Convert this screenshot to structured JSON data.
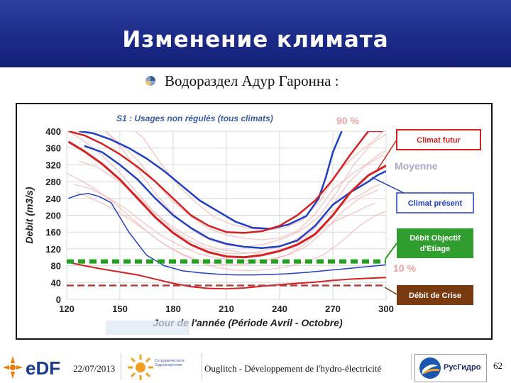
{
  "header": {
    "title": "Изменение климата"
  },
  "subtitle": "Водораздел Адур Гаронна :",
  "chart_data": {
    "type": "line",
    "title": "S1 : Usages non régulés (tous climats)",
    "xlabel": "Jour de l'année (Période Avril - Octobre)",
    "ylabel": "Debit (m3/s)",
    "xlim": [
      120,
      300
    ],
    "ylim": [
      0,
      400
    ],
    "x_ticks": [
      120,
      150,
      180,
      210,
      240,
      270,
      300
    ],
    "y_ticks": [
      0,
      40,
      80,
      120,
      160,
      200,
      240,
      280,
      320,
      360,
      400
    ],
    "x_tick_labels": [
      "120",
      "150",
      "180",
      "210",
      "240",
      "270",
      "300"
    ],
    "y_tick_labels": [
      "0",
      "40",
      "80",
      "120",
      "160",
      "200",
      "240",
      "280",
      "320",
      "360",
      "400"
    ],
    "annotations": [
      "90 %",
      "Moyenne",
      "10 %"
    ],
    "series": [
      {
        "name": "Climat présent",
        "style": "blue-90",
        "color": "#1f3fc4",
        "x": [
          127,
          135,
          145,
          155,
          165,
          175,
          185,
          195,
          205,
          215,
          225,
          235,
          245,
          255,
          262,
          266,
          270,
          275
        ],
        "y": [
          400,
          395,
          380,
          360,
          335,
          305,
          270,
          235,
          210,
          185,
          170,
          168,
          178,
          198,
          240,
          290,
          350,
          400
        ]
      },
      {
        "name": "Climat présent",
        "style": "blue-mean",
        "color": "#1f3fc4",
        "x": [
          130,
          140,
          150,
          160,
          170,
          180,
          190,
          200,
          210,
          220,
          230,
          240,
          250,
          260,
          270,
          280,
          290,
          295,
          300
        ],
        "y": [
          365,
          350,
          320,
          285,
          240,
          200,
          170,
          145,
          132,
          125,
          122,
          126,
          140,
          175,
          225,
          255,
          280,
          295,
          305
        ]
      },
      {
        "name": "Climat présent",
        "style": "blue-10",
        "color": "#1f3fc4",
        "x": [
          121,
          126,
          132,
          138,
          145,
          155,
          165,
          175,
          185,
          195,
          205,
          215,
          225,
          235,
          245,
          255,
          265,
          275,
          285,
          295,
          300
        ],
        "y": [
          240,
          248,
          252,
          245,
          230,
          160,
          105,
          80,
          68,
          63,
          60,
          58,
          58,
          59,
          61,
          64,
          68,
          72,
          76,
          80,
          82
        ]
      },
      {
        "name": "Climat futur",
        "style": "red-90",
        "color": "#d42020",
        "x": [
          121,
          130,
          140,
          150,
          160,
          170,
          180,
          190,
          200,
          210,
          220,
          230,
          240,
          250,
          260,
          270,
          280,
          290,
          298
        ],
        "y": [
          400,
          390,
          370,
          345,
          315,
          280,
          240,
          200,
          175,
          160,
          158,
          162,
          175,
          200,
          235,
          285,
          345,
          400,
          400
        ]
      },
      {
        "name": "Climat futur",
        "style": "red-mean",
        "color": "#d42020",
        "x": [
          121,
          130,
          140,
          150,
          160,
          170,
          180,
          190,
          200,
          210,
          220,
          230,
          240,
          250,
          260,
          270,
          280,
          290,
          300
        ],
        "y": [
          375,
          352,
          322,
          285,
          240,
          195,
          158,
          130,
          112,
          102,
          100,
          105,
          115,
          130,
          155,
          200,
          255,
          295,
          318
        ]
      },
      {
        "name": "Climat futur",
        "style": "red-10",
        "color": "#d42020",
        "x": [
          121,
          130,
          140,
          150,
          160,
          170,
          180,
          190,
          200,
          210,
          220,
          230,
          240,
          250,
          260,
          270,
          280,
          290,
          300
        ],
        "y": [
          88,
          80,
          72,
          65,
          58,
          48,
          38,
          30,
          26,
          25,
          27,
          31,
          35,
          38,
          41,
          45,
          48,
          50,
          52
        ]
      },
      {
        "name": "Débit Objectif d'Etiage",
        "style": "doe",
        "color": "#22a022",
        "x": [
          120,
          300
        ],
        "y": [
          90,
          90
        ]
      },
      {
        "name": "Débit de Crise",
        "style": "dcr",
        "color": "#b04040",
        "x": [
          120,
          300
        ],
        "y": [
          33,
          33
        ]
      }
    ],
    "legend": [
      {
        "label": "Climat futur",
        "color": "#d42020"
      },
      {
        "label": "Climat présent",
        "color": "#1f3fc4"
      },
      {
        "label": "Débit Objectif d'Etiage",
        "color": "#22a022"
      },
      {
        "label": "Débit de Crise",
        "color": "#7a3a10"
      }
    ],
    "grid": true
  },
  "footer": {
    "date": "22/07/2013",
    "text": "Ouglitch - Développement de l'hydro-électricité",
    "page": "62",
    "edf_logo": "eDF",
    "rushydro_logo": "РусГидро",
    "partner_text": "Сотрудничество в Гидроэнергетике"
  }
}
